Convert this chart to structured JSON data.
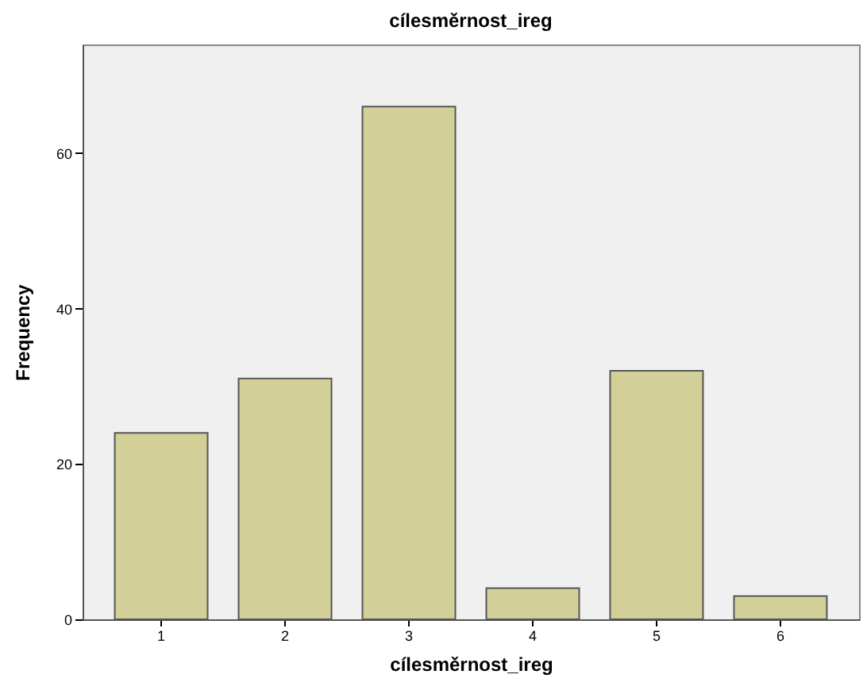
{
  "chart_data": {
    "type": "bar",
    "title": "cílesměrnost_ireg",
    "xlabel": "cílesměrnost_ireg",
    "ylabel": "Frequency",
    "categories": [
      "1",
      "2",
      "3",
      "4",
      "5",
      "6"
    ],
    "values": [
      24,
      31,
      66,
      4,
      32,
      3
    ],
    "color": "#d3cf98",
    "ylim": [
      0,
      74
    ],
    "yticks": [
      0,
      20,
      40,
      60
    ],
    "grid": false
  }
}
